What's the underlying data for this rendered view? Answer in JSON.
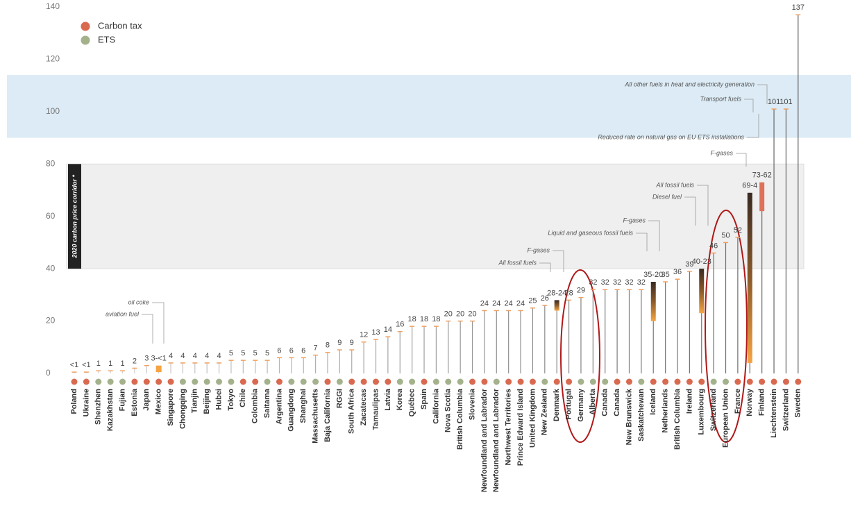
{
  "chart_data": {
    "type": "range-bar",
    "series": [
      {
        "name": "Carbon tax",
        "color": "#d9694f"
      },
      {
        "name": "ETS",
        "color": "#a4b28c"
      }
    ],
    "categories": [
      "Poland",
      "Ukraine",
      "Shenzhen",
      "Kazakhstan",
      "Fujian",
      "Estonia",
      "Japan",
      "Mexico",
      "Singapore",
      "Chongqing",
      "Tianjin",
      "Beijing",
      "Hubei",
      "Tokyo",
      "Chile",
      "Colombia",
      "Saitama",
      "Argentina",
      "Guangdong",
      "Shanghai",
      "Massachusetts",
      "Baja California",
      "RGGI",
      "South Africa",
      "Zacatecas",
      "Tamaulipas",
      "Latvia",
      "Korea",
      "Québec",
      "Spain",
      "California",
      "Nova Scotia",
      "British Columbia",
      "Slovenia",
      "Newfoundland and Labrador",
      "Newfoundland and Labrador",
      "Northwest Territories",
      "Prince Edward Island",
      "United Kingdom",
      "New Zealand",
      "Denmark",
      "Portugal",
      "Germany",
      "Alberta",
      "Canada",
      "Canada",
      "New Brunswick",
      "Saskatchewan",
      "Iceland",
      "Netherlands",
      "British Columbia",
      "Ireland",
      "Luxembourg",
      "Switzerland",
      "European Union",
      "France",
      "Norway",
      "Finland",
      "Liechtenstein",
      "Switzerland",
      "Sweden"
    ],
    "group": [
      0,
      0,
      1,
      1,
      1,
      0,
      0,
      0,
      0,
      1,
      1,
      1,
      1,
      1,
      0,
      0,
      1,
      0,
      1,
      1,
      1,
      0,
      1,
      0,
      0,
      0,
      0,
      1,
      1,
      0,
      1,
      1,
      1,
      0,
      0,
      1,
      0,
      0,
      0,
      1,
      0,
      0,
      1,
      1,
      1,
      0,
      0,
      1,
      0,
      0,
      0,
      0,
      0,
      1,
      1,
      0,
      0,
      0,
      0,
      0,
      0
    ],
    "values": [
      0.5,
      0.5,
      1,
      1,
      1,
      2,
      3,
      3,
      4,
      4,
      4,
      4,
      4,
      5,
      5,
      5,
      5,
      6,
      6,
      6,
      7,
      8,
      9,
      9,
      12,
      13,
      14,
      16,
      18,
      18,
      18,
      20,
      20,
      20,
      24,
      24,
      24,
      24,
      25,
      26,
      28,
      28,
      29,
      32,
      32,
      32,
      32,
      32,
      35,
      35,
      36,
      39,
      40,
      46,
      50,
      52,
      69,
      73,
      101,
      101,
      137
    ],
    "low": [
      null,
      null,
      null,
      null,
      null,
      null,
      null,
      0.5,
      null,
      null,
      null,
      null,
      null,
      null,
      null,
      null,
      null,
      null,
      null,
      null,
      null,
      null,
      null,
      null,
      null,
      null,
      null,
      null,
      null,
      null,
      null,
      null,
      null,
      null,
      null,
      null,
      null,
      null,
      null,
      null,
      24,
      null,
      null,
      null,
      null,
      null,
      null,
      null,
      20,
      null,
      null,
      null,
      23,
      null,
      null,
      null,
      4,
      62,
      null,
      null,
      null
    ],
    "value_labels": [
      "<1",
      "<1",
      "1",
      "1",
      "1",
      "2",
      "3",
      "3-<1",
      "4",
      "4",
      "4",
      "4",
      "4",
      "5",
      "5",
      "5",
      "5",
      "6",
      "6",
      "6",
      "7",
      "8",
      "9",
      "9",
      "12",
      "13",
      "14",
      "16",
      "18",
      "18",
      "18",
      "20",
      "20",
      "20",
      "24",
      "24",
      "24",
      "24",
      "25",
      "26",
      "28-24",
      "28",
      "29",
      "32",
      "32",
      "32",
      "32",
      "32",
      "35-20",
      "35",
      "36",
      "39",
      "40-23",
      "46",
      "50",
      "52",
      "69-4",
      "73-62",
      "101",
      "101",
      "137"
    ],
    "annotations": [
      "oil coke",
      "aviation fuel",
      "All fossil fuels",
      "F-gases",
      "Liquid and gaseous fossil fuels",
      "F-gases",
      "Diesel fuel",
      "All fossil fuels",
      "F-gases",
      "Reduced rate on natural gas on EU ETS installations",
      "Transport fuels",
      "All other fuels in heat and electricity generation"
    ],
    "corridor": {
      "label": "2020 carbon price corridor *",
      "range": [
        40,
        80
      ]
    },
    "upper_band": [
      90,
      114
    ],
    "ylim": [
      0,
      140
    ],
    "yticks": [
      0,
      20,
      40,
      60,
      80,
      100,
      120,
      140
    ]
  }
}
